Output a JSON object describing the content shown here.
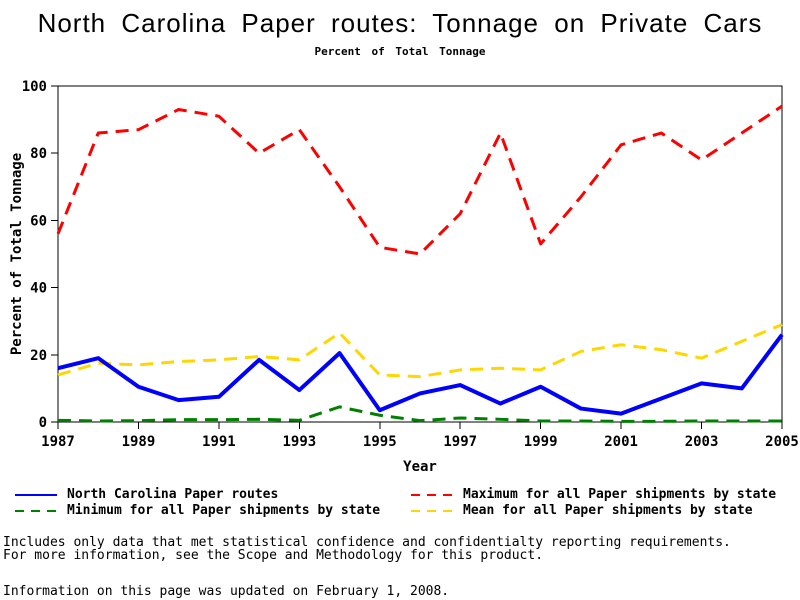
{
  "chart_data": {
    "type": "line",
    "title": "North Carolina Paper routes: Tonnage on Private Cars",
    "subtitle": "Percent of Total Tonnage",
    "xlabel": "Year",
    "ylabel": "Percent of Total Tonnage",
    "x_range": [
      1987,
      2005
    ],
    "y_range": [
      0,
      100
    ],
    "x_ticks": [
      1987,
      1989,
      1991,
      1993,
      1995,
      1997,
      1999,
      2001,
      2003,
      2005
    ],
    "y_ticks": [
      0,
      20,
      40,
      60,
      80,
      100
    ],
    "grid": false,
    "legend_position": "bottom",
    "years": [
      1987,
      1988,
      1989,
      1990,
      1991,
      1992,
      1993,
      1994,
      1995,
      1996,
      1997,
      1998,
      1999,
      2000,
      2001,
      2002,
      2003,
      2004,
      2005
    ],
    "series": [
      {
        "name": "North Carolina Paper routes",
        "color": "#0000ff",
        "dash": "solid",
        "values": [
          16,
          19,
          10.5,
          6.5,
          7.5,
          18.5,
          9.5,
          20.5,
          3.5,
          8.5,
          11,
          5.5,
          10.5,
          4,
          2.5,
          7,
          11.5,
          10,
          26
        ]
      },
      {
        "name": "Maximum for all Paper shipments by state",
        "color": "#ff0000",
        "dash": "dashed",
        "values": [
          56,
          86,
          87,
          93,
          91,
          80,
          87,
          70,
          52,
          50,
          62,
          86,
          53,
          67,
          82.5,
          86,
          78,
          86,
          94
        ]
      },
      {
        "name": "Minimum for all Paper shipments by state",
        "color": "#008000",
        "dash": "dashed",
        "values": [
          0.5,
          0.3,
          0.4,
          0.7,
          0.7,
          0.8,
          0.5,
          4.5,
          2,
          0.4,
          1.2,
          0.8,
          0.3,
          0.3,
          0.2,
          0.2,
          0.3,
          0.3,
          0.3
        ]
      },
      {
        "name": "Mean for all Paper shipments by state",
        "color": "#ffd700",
        "dash": "dashed",
        "values": [
          14,
          17.5,
          17,
          18,
          18.5,
          19.5,
          18.5,
          26.5,
          14,
          13.5,
          15.5,
          16,
          15.5,
          21,
          23,
          21.5,
          19,
          24,
          29
        ]
      }
    ]
  },
  "footnotes": {
    "line1": "Includes only data that met statistical confidence and confidentialty reporting requirements.",
    "line2": "For more information, see the Scope and Methodology for this product.",
    "updated": "Information on this page was updated on February 1, 2008."
  }
}
